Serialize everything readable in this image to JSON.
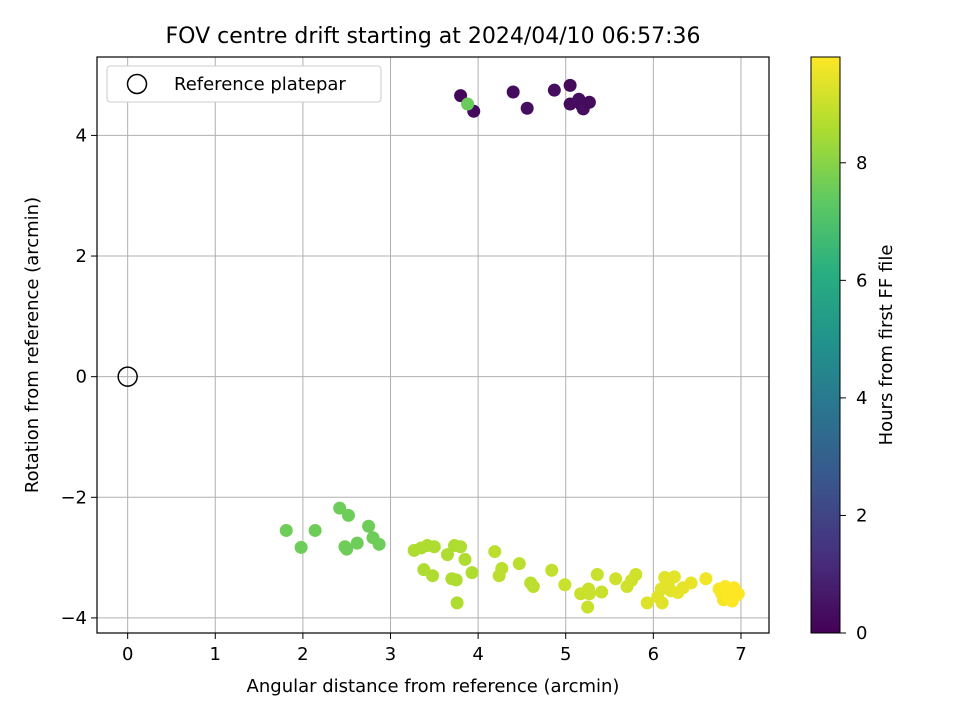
{
  "chart_data": {
    "type": "scatter",
    "title": "FOV centre drift starting at 2024/04/10 06:57:36",
    "xlabel": "Angular distance from reference (arcmin)",
    "ylabel": "Rotation from reference (arcmin)",
    "xlim": [
      -0.35,
      7.32
    ],
    "ylim": [
      -4.25,
      5.3
    ],
    "xticks": [
      0,
      1,
      2,
      3,
      4,
      5,
      6,
      7
    ],
    "yticks": [
      -4,
      -2,
      0,
      2,
      4
    ],
    "grid": true,
    "legend": {
      "location": "upper left",
      "entries": [
        "Reference platepar"
      ]
    },
    "reference_point": {
      "label": "Reference platepar",
      "x": 0,
      "y": 0,
      "marker": "open-circle"
    },
    "colorbar": {
      "label": "Hours from first FF file",
      "colormap": "viridis",
      "range": [
        0,
        9.8
      ],
      "ticks": [
        0,
        2,
        4,
        6,
        8
      ]
    },
    "series": [
      {
        "color_by": "hours",
        "x": [
          3.8,
          3.95,
          4.4,
          4.56,
          4.87,
          5.05,
          5.05,
          5.15,
          5.18,
          5.2,
          5.27,
          3.88,
          1.81,
          1.98,
          2.14,
          2.42,
          2.48,
          2.5,
          2.52,
          2.62,
          2.75,
          2.8,
          2.87
        ],
        "y": [
          4.66,
          4.4,
          4.72,
          4.45,
          4.75,
          4.83,
          4.52,
          4.6,
          4.5,
          4.44,
          4.55,
          4.52,
          -2.55,
          -2.83,
          -2.55,
          -2.18,
          -2.82,
          -2.86,
          -2.3,
          -2.76,
          -2.48,
          -2.67,
          -2.78
        ],
        "hours": [
          0.2,
          0.3,
          0.3,
          0.4,
          0.35,
          0.25,
          0.3,
          0.4,
          0.3,
          0.35,
          0.3,
          7.5,
          7.6,
          7.6,
          7.6,
          7.6,
          7.6,
          7.6,
          7.6,
          7.6,
          7.6,
          7.6,
          7.6
        ]
      },
      {
        "color_by": "hours",
        "x": [
          3.27,
          3.35,
          3.38,
          3.42,
          3.48,
          3.5,
          3.65,
          3.7,
          3.73,
          3.75,
          3.76,
          3.8,
          3.85,
          3.93,
          4.19,
          4.24,
          4.27,
          4.47,
          4.6,
          4.63,
          4.84,
          4.99,
          5.17,
          5.25,
          5.26,
          5.27,
          5.36,
          5.41,
          5.57,
          5.7,
          5.75,
          5.8
        ],
        "y": [
          -2.88,
          -2.84,
          -3.2,
          -2.8,
          -3.3,
          -2.82,
          -2.95,
          -3.35,
          -2.8,
          -3.37,
          -3.75,
          -2.82,
          -3.03,
          -3.25,
          -2.9,
          -3.3,
          -3.18,
          -3.1,
          -3.42,
          -3.48,
          -3.21,
          -3.45,
          -3.6,
          -3.82,
          -3.52,
          -3.6,
          -3.28,
          -3.57,
          -3.35,
          -3.48,
          -3.38,
          -3.28
        ],
        "hours": [
          8.6,
          8.6,
          8.6,
          8.6,
          8.6,
          8.6,
          8.6,
          8.6,
          8.6,
          8.6,
          8.6,
          8.6,
          8.6,
          8.6,
          8.8,
          8.8,
          8.8,
          8.8,
          8.8,
          8.8,
          8.9,
          9.0,
          9.0,
          9.0,
          9.0,
          9.0,
          9.0,
          9.0,
          9.1,
          9.1,
          9.1,
          9.1
        ]
      },
      {
        "color_by": "hours",
        "x": [
          5.93,
          6.05,
          6.09,
          6.1,
          6.13,
          6.17,
          6.2,
          6.24,
          6.28,
          6.34,
          6.43,
          6.6,
          6.75,
          6.78,
          6.8,
          6.82,
          6.85,
          6.88,
          6.9,
          6.92,
          6.95,
          6.97
        ],
        "y": [
          -3.75,
          -3.65,
          -3.52,
          -3.75,
          -3.33,
          -3.43,
          -3.55,
          -3.32,
          -3.58,
          -3.5,
          -3.42,
          -3.35,
          -3.52,
          -3.6,
          -3.7,
          -3.48,
          -3.65,
          -3.55,
          -3.72,
          -3.5,
          -3.62,
          -3.6
        ],
        "hours": [
          9.3,
          9.35,
          9.35,
          9.35,
          9.35,
          9.4,
          9.4,
          9.4,
          9.45,
          9.45,
          9.5,
          9.6,
          9.7,
          9.7,
          9.7,
          9.75,
          9.75,
          9.75,
          9.8,
          9.8,
          9.8,
          9.8
        ]
      }
    ]
  }
}
